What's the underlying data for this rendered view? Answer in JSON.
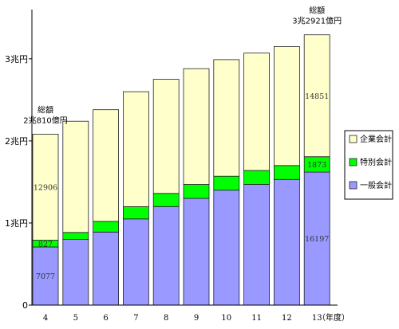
{
  "chart_data": {
    "type": "bar",
    "stacked": true,
    "categories": [
      "4",
      "5",
      "6",
      "7",
      "8",
      "9",
      "10",
      "11",
      "12",
      "13"
    ],
    "x_unit_label": "（年度）",
    "series": [
      {
        "name": "一般会計",
        "color": "#9999ff",
        "values": [
          7077,
          8000,
          8900,
          10500,
          12000,
          13000,
          14000,
          14700,
          15300,
          16197
        ]
      },
      {
        "name": "特別会計",
        "color": "#00ff00",
        "values": [
          827,
          850,
          1300,
          1500,
          1600,
          1700,
          1700,
          1700,
          1700,
          1873
        ]
      },
      {
        "name": "企業会計",
        "color": "#ffffcc",
        "values": [
          12906,
          13550,
          13600,
          14000,
          13900,
          14100,
          14200,
          14300,
          14500,
          14851
        ]
      }
    ],
    "data_labels": [
      {
        "category": "4",
        "series": "一般会計",
        "text": "7077"
      },
      {
        "category": "4",
        "series": "特別会計",
        "text": "827"
      },
      {
        "category": "4",
        "series": "企業会計",
        "text": "12906"
      },
      {
        "category": "13",
        "series": "一般会計",
        "text": "16197"
      },
      {
        "category": "13",
        "series": "特別会計",
        "text": "1873"
      },
      {
        "category": "13",
        "series": "企業会計",
        "text": "14851"
      }
    ],
    "y_ticks": [
      {
        "value": 0,
        "label": "0"
      },
      {
        "value": 10000,
        "label": "1兆円"
      },
      {
        "value": 20000,
        "label": "2兆円"
      },
      {
        "value": 30000,
        "label": "3兆円"
      }
    ],
    "ylim": [
      0,
      36000
    ],
    "grid": false,
    "legend_position": "right",
    "annotations": [
      {
        "category": "4",
        "line1": "総額",
        "line2": "2兆810億円"
      },
      {
        "category": "13",
        "line1": "総額",
        "line2": "3兆2921億円"
      }
    ]
  }
}
